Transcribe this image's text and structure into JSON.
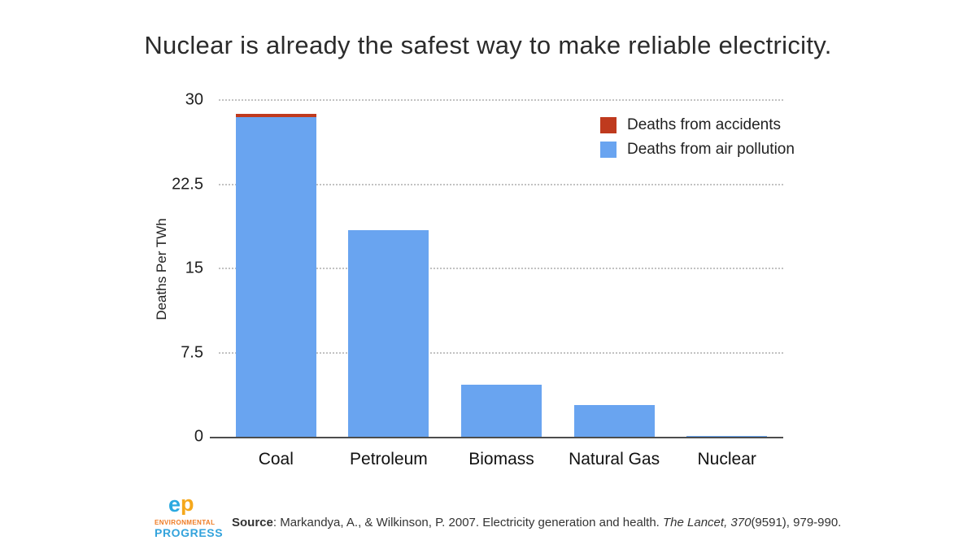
{
  "title": "Nuclear is already the safest way to make reliable electricity.",
  "legend": [
    {
      "label": "Deaths from accidents",
      "color": "#bf3a1e"
    },
    {
      "label": "Deaths from air pollution",
      "color": "#69a4f0"
    }
  ],
  "chart_data": {
    "type": "bar",
    "stacked": true,
    "categories": [
      "Coal",
      "Petroleum",
      "Biomass",
      "Natural Gas",
      "Nuclear"
    ],
    "series": [
      {
        "name": "Deaths from accidents",
        "color": "#bf3a1e",
        "values": [
          0.25,
          0,
          0,
          0,
          0
        ]
      },
      {
        "name": "Deaths from air pollution",
        "color": "#69a4f0",
        "values": [
          28.5,
          18.4,
          4.65,
          2.8,
          0.07
        ]
      }
    ],
    "title": "Nuclear is already the safest way to make reliable electricity.",
    "xlabel": "",
    "ylabel": "Deaths Per TWh",
    "yticks": [
      0,
      7.5,
      15,
      22.5,
      30
    ],
    "ylim": [
      0,
      30
    ],
    "grid": "dotted horizontal gridlines, solid baseline at 0",
    "legend_position": "top-right inside plot"
  },
  "footer": {
    "logo": {
      "monogram_e": "e",
      "monogram_p": "p",
      "line1": "ENVIRONMENTAL",
      "line2": "PROGRESS",
      "color_e": "#2aa9e0",
      "color_p": "#f5a81c",
      "color_line1": "#ef7b24",
      "color_line2": "#33a3dc"
    },
    "source": {
      "label": "Source",
      "text": ": Markandya, A., & Wilkinson, P. 2007. Electricity generation and health. ",
      "italic": "The Lancet, 370",
      "tail": "(9591), 979-990."
    }
  }
}
